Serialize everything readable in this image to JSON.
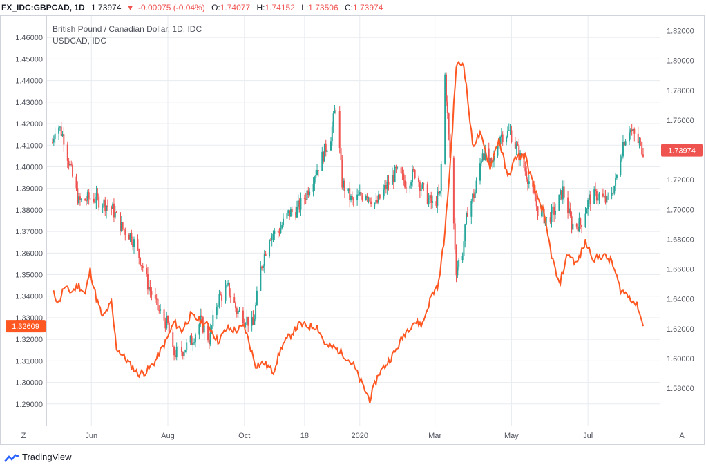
{
  "header": {
    "symbol": "FX_IDC:GBPCAD, 1D",
    "last": "1.73974",
    "change_arrow": "▼",
    "change": "-0.00075 (-0.04%)",
    "o_label": "O:",
    "o_value": "1.74077",
    "h_label": "H:",
    "h_value": "1.74152",
    "l_label": "L:",
    "l_value": "1.73506",
    "c_label": "C:",
    "c_value": "1.73974"
  },
  "legend": {
    "title": "British Pound / Canadian Dollar, 1D, IDC",
    "overlay": "USDCAD, IDC"
  },
  "corner_left": "Z",
  "corner_right": "A",
  "footer": {
    "brand": "TradingView"
  },
  "colors": {
    "up": "#26a69a",
    "down": "#ef5350",
    "overlay": "#ff5722",
    "grid": "#e8ebef",
    "axis_text": "#50535e",
    "right_badge": "#ef5350",
    "left_badge": "#ff5722"
  },
  "chart_data": {
    "type": "candlestick-with-line-overlay",
    "x_tick_labels": [
      "Jun",
      "Aug",
      "Oct",
      "18",
      "2020",
      "Mar",
      "May",
      "Jul"
    ],
    "x_tick_dates": [
      "2019-06-01",
      "2019-08-01",
      "2019-10-01",
      "2019-11-18",
      "2020-01-01",
      "2020-03-01",
      "2020-05-01",
      "2020-07-01"
    ],
    "x_range": [
      "2019-05-01",
      "2020-08-14"
    ],
    "left_axis": {
      "series": "USDCAD",
      "ylim": [
        1.28,
        1.47
      ],
      "ticks": [
        "1.29000",
        "1.30000",
        "1.31000",
        "1.32000",
        "1.33000",
        "1.34000",
        "1.35000",
        "1.36000",
        "1.37000",
        "1.38000",
        "1.39000",
        "1.40000",
        "1.41000",
        "1.42000",
        "1.43000",
        "1.44000",
        "1.45000",
        "1.46000"
      ],
      "last_value_badge": "1.32609"
    },
    "right_axis": {
      "series": "GBPCAD",
      "ylim": [
        1.555,
        1.83
      ],
      "ticks": [
        "1.58000",
        "1.60000",
        "1.62000",
        "1.64000",
        "1.66000",
        "1.68000",
        "1.70000",
        "1.72000",
        "1.74000",
        "1.76000",
        "1.78000",
        "1.80000",
        "1.82000"
      ],
      "last_value_badge": "1.73974"
    },
    "gbpcad_close_anchors": [
      {
        "date": "2019-05-01",
        "value": 1.745
      },
      {
        "date": "2019-05-04",
        "value": 1.76
      },
      {
        "date": "2019-05-10",
        "value": 1.748
      },
      {
        "date": "2019-05-16",
        "value": 1.725
      },
      {
        "date": "2019-05-22",
        "value": 1.705
      },
      {
        "date": "2019-06-01",
        "value": 1.708
      },
      {
        "date": "2019-06-10",
        "value": 1.705
      },
      {
        "date": "2019-06-18",
        "value": 1.7
      },
      {
        "date": "2019-06-25",
        "value": 1.688
      },
      {
        "date": "2019-07-03",
        "value": 1.682
      },
      {
        "date": "2019-07-10",
        "value": 1.667
      },
      {
        "date": "2019-07-16",
        "value": 1.65
      },
      {
        "date": "2019-07-24",
        "value": 1.633
      },
      {
        "date": "2019-08-01",
        "value": 1.622
      },
      {
        "date": "2019-08-05",
        "value": 1.603
      },
      {
        "date": "2019-08-12",
        "value": 1.605
      },
      {
        "date": "2019-08-20",
        "value": 1.612
      },
      {
        "date": "2019-08-27",
        "value": 1.625
      },
      {
        "date": "2019-09-03",
        "value": 1.613
      },
      {
        "date": "2019-09-10",
        "value": 1.64
      },
      {
        "date": "2019-09-18",
        "value": 1.647
      },
      {
        "date": "2019-09-25",
        "value": 1.632
      },
      {
        "date": "2019-10-02",
        "value": 1.627
      },
      {
        "date": "2019-10-08",
        "value": 1.622
      },
      {
        "date": "2019-10-14",
        "value": 1.66
      },
      {
        "date": "2019-10-21",
        "value": 1.683
      },
      {
        "date": "2019-10-28",
        "value": 1.685
      },
      {
        "date": "2019-11-05",
        "value": 1.697
      },
      {
        "date": "2019-11-12",
        "value": 1.7
      },
      {
        "date": "2019-11-18",
        "value": 1.708
      },
      {
        "date": "2019-11-25",
        "value": 1.722
      },
      {
        "date": "2019-12-02",
        "value": 1.735
      },
      {
        "date": "2019-12-09",
        "value": 1.75
      },
      {
        "date": "2019-12-13",
        "value": 1.77
      },
      {
        "date": "2019-12-18",
        "value": 1.718
      },
      {
        "date": "2019-12-26",
        "value": 1.705
      },
      {
        "date": "2020-01-06",
        "value": 1.712
      },
      {
        "date": "2020-01-14",
        "value": 1.703
      },
      {
        "date": "2020-01-22",
        "value": 1.715
      },
      {
        "date": "2020-01-30",
        "value": 1.725
      },
      {
        "date": "2020-02-07",
        "value": 1.718
      },
      {
        "date": "2020-02-14",
        "value": 1.725
      },
      {
        "date": "2020-02-21",
        "value": 1.712
      },
      {
        "date": "2020-02-28",
        "value": 1.703
      },
      {
        "date": "2020-03-05",
        "value": 1.71
      },
      {
        "date": "2020-03-09",
        "value": 1.79
      },
      {
        "date": "2020-03-13",
        "value": 1.735
      },
      {
        "date": "2020-03-18",
        "value": 1.66
      },
      {
        "date": "2020-03-23",
        "value": 1.672
      },
      {
        "date": "2020-03-27",
        "value": 1.7
      },
      {
        "date": "2020-04-02",
        "value": 1.712
      },
      {
        "date": "2020-04-08",
        "value": 1.74
      },
      {
        "date": "2020-04-15",
        "value": 1.728
      },
      {
        "date": "2020-04-22",
        "value": 1.75
      },
      {
        "date": "2020-04-30",
        "value": 1.752
      },
      {
        "date": "2020-05-07",
        "value": 1.737
      },
      {
        "date": "2020-05-14",
        "value": 1.722
      },
      {
        "date": "2020-05-22",
        "value": 1.7
      },
      {
        "date": "2020-05-29",
        "value": 1.693
      },
      {
        "date": "2020-06-05",
        "value": 1.7
      },
      {
        "date": "2020-06-11",
        "value": 1.713
      },
      {
        "date": "2020-06-18",
        "value": 1.69
      },
      {
        "date": "2020-06-25",
        "value": 1.69
      },
      {
        "date": "2020-07-02",
        "value": 1.707
      },
      {
        "date": "2020-07-09",
        "value": 1.71
      },
      {
        "date": "2020-07-16",
        "value": 1.705
      },
      {
        "date": "2020-07-23",
        "value": 1.718
      },
      {
        "date": "2020-07-29",
        "value": 1.745
      },
      {
        "date": "2020-08-03",
        "value": 1.755
      },
      {
        "date": "2020-08-10",
        "value": 1.745
      },
      {
        "date": "2020-08-14",
        "value": 1.74
      }
    ],
    "usdcad_close_anchors": [
      {
        "date": "2019-05-01",
        "value": 1.342
      },
      {
        "date": "2019-05-06",
        "value": 1.337
      },
      {
        "date": "2019-05-10",
        "value": 1.344
      },
      {
        "date": "2019-05-16",
        "value": 1.342
      },
      {
        "date": "2019-05-22",
        "value": 1.345
      },
      {
        "date": "2019-05-27",
        "value": 1.341
      },
      {
        "date": "2019-05-31",
        "value": 1.352
      },
      {
        "date": "2019-06-05",
        "value": 1.339
      },
      {
        "date": "2019-06-10",
        "value": 1.33
      },
      {
        "date": "2019-06-17",
        "value": 1.337
      },
      {
        "date": "2019-06-21",
        "value": 1.316
      },
      {
        "date": "2019-07-01",
        "value": 1.309
      },
      {
        "date": "2019-07-08",
        "value": 1.304
      },
      {
        "date": "2019-07-15",
        "value": 1.305
      },
      {
        "date": "2019-07-22",
        "value": 1.31
      },
      {
        "date": "2019-08-01",
        "value": 1.321
      },
      {
        "date": "2019-08-06",
        "value": 1.328
      },
      {
        "date": "2019-08-12",
        "value": 1.324
      },
      {
        "date": "2019-08-19",
        "value": 1.331
      },
      {
        "date": "2019-08-26",
        "value": 1.329
      },
      {
        "date": "2019-09-03",
        "value": 1.326
      },
      {
        "date": "2019-09-10",
        "value": 1.319
      },
      {
        "date": "2019-09-17",
        "value": 1.325
      },
      {
        "date": "2019-09-24",
        "value": 1.324
      },
      {
        "date": "2019-10-01",
        "value": 1.326
      },
      {
        "date": "2019-10-10",
        "value": 1.308
      },
      {
        "date": "2019-10-17",
        "value": 1.309
      },
      {
        "date": "2019-10-24",
        "value": 1.305
      },
      {
        "date": "2019-10-31",
        "value": 1.317
      },
      {
        "date": "2019-11-08",
        "value": 1.323
      },
      {
        "date": "2019-11-14",
        "value": 1.327
      },
      {
        "date": "2019-11-21",
        "value": 1.326
      },
      {
        "date": "2019-11-28",
        "value": 1.326
      },
      {
        "date": "2019-12-05",
        "value": 1.317
      },
      {
        "date": "2019-12-12",
        "value": 1.316
      },
      {
        "date": "2019-12-19",
        "value": 1.313
      },
      {
        "date": "2019-12-27",
        "value": 1.308
      },
      {
        "date": "2020-01-03",
        "value": 1.299
      },
      {
        "date": "2020-01-09",
        "value": 1.292
      },
      {
        "date": "2020-01-16",
        "value": 1.304
      },
      {
        "date": "2020-01-23",
        "value": 1.309
      },
      {
        "date": "2020-01-30",
        "value": 1.315
      },
      {
        "date": "2020-02-06",
        "value": 1.323
      },
      {
        "date": "2020-02-13",
        "value": 1.328
      },
      {
        "date": "2020-02-20",
        "value": 1.327
      },
      {
        "date": "2020-02-27",
        "value": 1.34
      },
      {
        "date": "2020-03-04",
        "value": 1.346
      },
      {
        "date": "2020-03-09",
        "value": 1.37
      },
      {
        "date": "2020-03-13",
        "value": 1.4
      },
      {
        "date": "2020-03-18",
        "value": 1.447
      },
      {
        "date": "2020-03-24",
        "value": 1.448
      },
      {
        "date": "2020-03-31",
        "value": 1.41
      },
      {
        "date": "2020-04-06",
        "value": 1.415
      },
      {
        "date": "2020-04-14",
        "value": 1.4
      },
      {
        "date": "2020-04-21",
        "value": 1.413
      },
      {
        "date": "2020-04-28",
        "value": 1.395
      },
      {
        "date": "2020-05-05",
        "value": 1.405
      },
      {
        "date": "2020-05-12",
        "value": 1.405
      },
      {
        "date": "2020-05-19",
        "value": 1.39
      },
      {
        "date": "2020-05-26",
        "value": 1.38
      },
      {
        "date": "2020-06-02",
        "value": 1.359
      },
      {
        "date": "2020-06-08",
        "value": 1.345
      },
      {
        "date": "2020-06-15",
        "value": 1.36
      },
      {
        "date": "2020-06-22",
        "value": 1.355
      },
      {
        "date": "2020-06-29",
        "value": 1.365
      },
      {
        "date": "2020-07-06",
        "value": 1.357
      },
      {
        "date": "2020-07-13",
        "value": 1.359
      },
      {
        "date": "2020-07-20",
        "value": 1.356
      },
      {
        "date": "2020-07-27",
        "value": 1.343
      },
      {
        "date": "2020-08-03",
        "value": 1.34
      },
      {
        "date": "2020-08-10",
        "value": 1.335
      },
      {
        "date": "2020-08-14",
        "value": 1.3261
      }
    ]
  }
}
